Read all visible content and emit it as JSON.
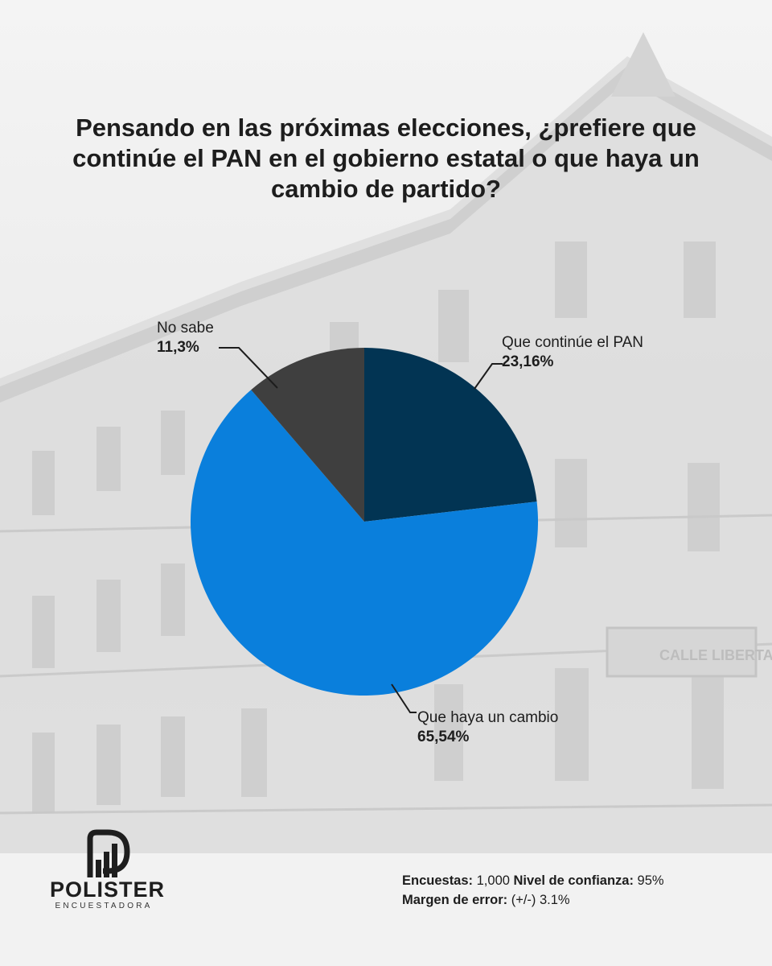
{
  "title": "Pensando en las próximas elecciones, ¿prefiere que continúe el PAN en el gobierno estatal o que haya un cambio de partido?",
  "chart_data": {
    "type": "pie",
    "title": "Pensando en las próximas elecciones, ¿prefiere que continúe el PAN en el gobierno estatal o que haya un cambio de partido?",
    "slices": [
      {
        "label": "Que continúe el PAN",
        "value": 23.16,
        "value_label": "23,16%",
        "color": "#023453"
      },
      {
        "label": "Que haya un cambio",
        "value": 65.54,
        "value_label": "65,54%",
        "color": "#0a7fdc"
      },
      {
        "label": "No sabe",
        "value": 11.3,
        "value_label": "11,3%",
        "color": "#3f3f3f"
      }
    ],
    "start_angle": "12 o'clock",
    "direction": "clockwise",
    "legend": "none"
  },
  "brand": {
    "name": "POLISTER",
    "tagline": "ENCUESTADORA"
  },
  "footer": {
    "line1": [
      {
        "label": "Encuestas:",
        "value": " 1,000 "
      },
      {
        "label": "Nivel de confianza:",
        "value": " 95%"
      }
    ],
    "line2": [
      {
        "label": "Margen de error:",
        "value": " (+/-) 3.1%"
      }
    ]
  }
}
